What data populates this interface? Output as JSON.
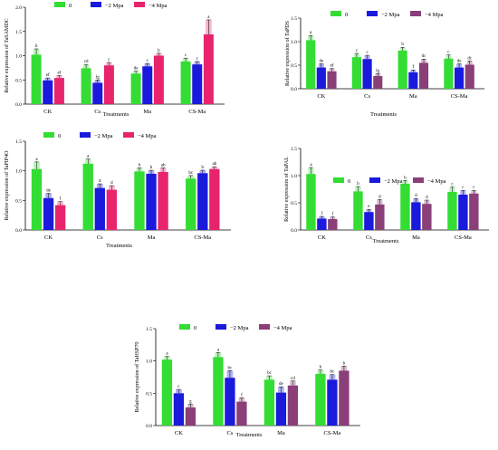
{
  "chart_data": [
    {
      "type": "bar",
      "title": "",
      "ylabel": "Relative expression of TaSAMDC",
      "xlabel": "Treatments",
      "categories": [
        "CK",
        "Cs",
        "Ma",
        "CS-Ma"
      ],
      "legend": [
        "0",
        "−2 Mpa",
        "−4 Mpa"
      ],
      "ylim": [
        0,
        2.0
      ],
      "yticks": [
        "0.0",
        "0.5",
        "1.0",
        "1.5",
        "2.0"
      ],
      "series": [
        {
          "name": "0",
          "values": [
            1.02,
            0.74,
            0.63,
            0.88
          ],
          "errors": [
            0.12,
            0.08,
            0.05,
            0.07
          ],
          "letters": [
            "b",
            "cd",
            "de",
            "c"
          ]
        },
        {
          "name": "−2 Mpa",
          "values": [
            0.49,
            0.44,
            0.78,
            0.82
          ],
          "errors": [
            0.05,
            0.06,
            0.06,
            0.06
          ],
          "letters": [
            "ef",
            "fg",
            "c",
            "c"
          ]
        },
        {
          "name": "−4 Mpa",
          "values": [
            0.54,
            0.8,
            1.0,
            1.44
          ],
          "errors": [
            0.05,
            0.06,
            0.05,
            0.3
          ],
          "letters": [
            "ef",
            "c",
            "b",
            "a"
          ]
        }
      ],
      "colors": [
        "#33dd33",
        "#1a1adc",
        "#e8246d"
      ]
    },
    {
      "type": "bar",
      "title": "",
      "ylabel": "Relative expression of TaPDS",
      "xlabel": "Treatments",
      "categories": [
        "CK",
        "Cs",
        "Ma",
        "CS-Ma"
      ],
      "legend": [
        "0",
        "−2 Mpa",
        "−4 Mpa"
      ],
      "ylim": [
        0,
        1.5
      ],
      "yticks": [
        "0.0",
        "0.5",
        "1.0",
        "1.5"
      ],
      "series": [
        {
          "name": "0",
          "values": [
            1.03,
            0.67,
            0.81,
            0.64
          ],
          "errors": [
            0.1,
            0.08,
            0.07,
            0.08
          ],
          "letters": [
            "a",
            "c",
            "b",
            "c"
          ]
        },
        {
          "name": "−2 Mpa",
          "values": [
            0.45,
            0.63,
            0.35,
            0.45
          ],
          "errors": [
            0.08,
            0.08,
            0.05,
            0.08
          ],
          "letters": [
            "de",
            "c",
            "f",
            "de"
          ]
        },
        {
          "name": "−4 Mpa",
          "values": [
            0.37,
            0.27,
            0.55,
            0.51
          ],
          "errors": [
            0.06,
            0.05,
            0.08,
            0.08
          ],
          "letters": [
            "ef",
            "fg",
            "dc",
            "dc"
          ]
        }
      ],
      "colors": [
        "#33dd33",
        "#1a1adc",
        "#8a3f78"
      ]
    },
    {
      "type": "bar",
      "title": "",
      "ylabel": "Relative expression of TaPIP4O",
      "xlabel": "Treatments",
      "categories": [
        "CK",
        "Cs",
        "Ma",
        "CS-Ma"
      ],
      "legend": [
        "0",
        "−2 Mpa",
        "−4 Mpa"
      ],
      "ylim": [
        0,
        1.5
      ],
      "yticks": [
        "0.0",
        "0.5",
        "1.0",
        "1.5"
      ],
      "series": [
        {
          "name": "0",
          "values": [
            1.03,
            1.12,
            0.99,
            0.87
          ],
          "errors": [
            0.12,
            0.08,
            0.06,
            0.05
          ],
          "letters": [
            "a",
            "a",
            "b",
            "bc"
          ]
        },
        {
          "name": "−2 Mpa",
          "values": [
            0.54,
            0.71,
            0.95,
            0.96
          ],
          "errors": [
            0.08,
            0.07,
            0.06,
            0.05
          ],
          "letters": [
            "de",
            "d",
            "b",
            "b"
          ]
        },
        {
          "name": "−4 Mpa",
          "values": [
            0.42,
            0.68,
            0.98,
            1.03
          ],
          "errors": [
            0.06,
            0.07,
            0.07,
            0.04
          ],
          "letters": [
            "f",
            "d",
            "ab",
            "ab"
          ]
        }
      ],
      "colors": [
        "#33dd33",
        "#1a1adc",
        "#e8246d"
      ]
    },
    {
      "type": "bar",
      "title": "",
      "ylabel": "Relative expression of TaPAL",
      "xlabel": "Treatments",
      "categories": [
        "CK",
        "Cs",
        "Ma",
        "CS-Ma"
      ],
      "legend": [
        "0",
        "−2 Mpa",
        "−4 Mpa"
      ],
      "ylim": [
        0,
        1.5
      ],
      "yticks": [
        "0.0",
        "0.5",
        "1.0",
        "1.5"
      ],
      "series": [
        {
          "name": "0",
          "values": [
            1.03,
            0.71,
            0.85,
            0.7
          ],
          "errors": [
            0.12,
            0.09,
            0.06,
            0.09
          ],
          "letters": [
            "a",
            "b",
            "b",
            "c"
          ]
        },
        {
          "name": "−2 Mpa",
          "values": [
            0.21,
            0.33,
            0.51,
            0.65
          ],
          "errors": [
            0.04,
            0.05,
            0.07,
            0.08
          ],
          "letters": [
            "f",
            "e",
            "d",
            "c"
          ]
        },
        {
          "name": "−4 Mpa",
          "values": [
            0.2,
            0.47,
            0.48,
            0.67
          ],
          "errors": [
            0.04,
            0.09,
            0.07,
            0.06
          ],
          "letters": [
            "f",
            "d",
            "d",
            "c"
          ]
        }
      ],
      "colors": [
        "#33dd33",
        "#1a1adc",
        "#8a3f78"
      ]
    },
    {
      "type": "bar",
      "title": "",
      "ylabel": "Relative expression of TaHSP70",
      "xlabel": "Treatments",
      "categories": [
        "CK",
        "Cs",
        "Ma",
        "CS-Ma"
      ],
      "legend": [
        "0",
        "−2 Mpa",
        "−4 Mpa"
      ],
      "ylim": [
        0,
        1.5
      ],
      "yticks": [
        "0.0",
        "0.5",
        "1.0",
        "1.5"
      ],
      "series": [
        {
          "name": "0",
          "values": [
            1.02,
            1.06,
            0.71,
            0.8
          ],
          "errors": [
            0.05,
            0.07,
            0.06,
            0.06
          ],
          "letters": [
            "a",
            "a",
            "bc",
            "b"
          ]
        },
        {
          "name": "−2 Mpa",
          "values": [
            0.5,
            0.74,
            0.51,
            0.71
          ],
          "errors": [
            0.06,
            0.11,
            0.09,
            0.08
          ],
          "letters": [
            "c",
            "bc",
            "de",
            "bc"
          ]
        },
        {
          "name": "−4 Mpa",
          "values": [
            0.28,
            0.37,
            0.62,
            0.85
          ],
          "errors": [
            0.05,
            0.06,
            0.07,
            0.07
          ],
          "letters": [
            "g",
            "f",
            "cd",
            "b"
          ]
        }
      ],
      "colors": [
        "#33dd33",
        "#1a1adc",
        "#8a3f78"
      ]
    }
  ]
}
